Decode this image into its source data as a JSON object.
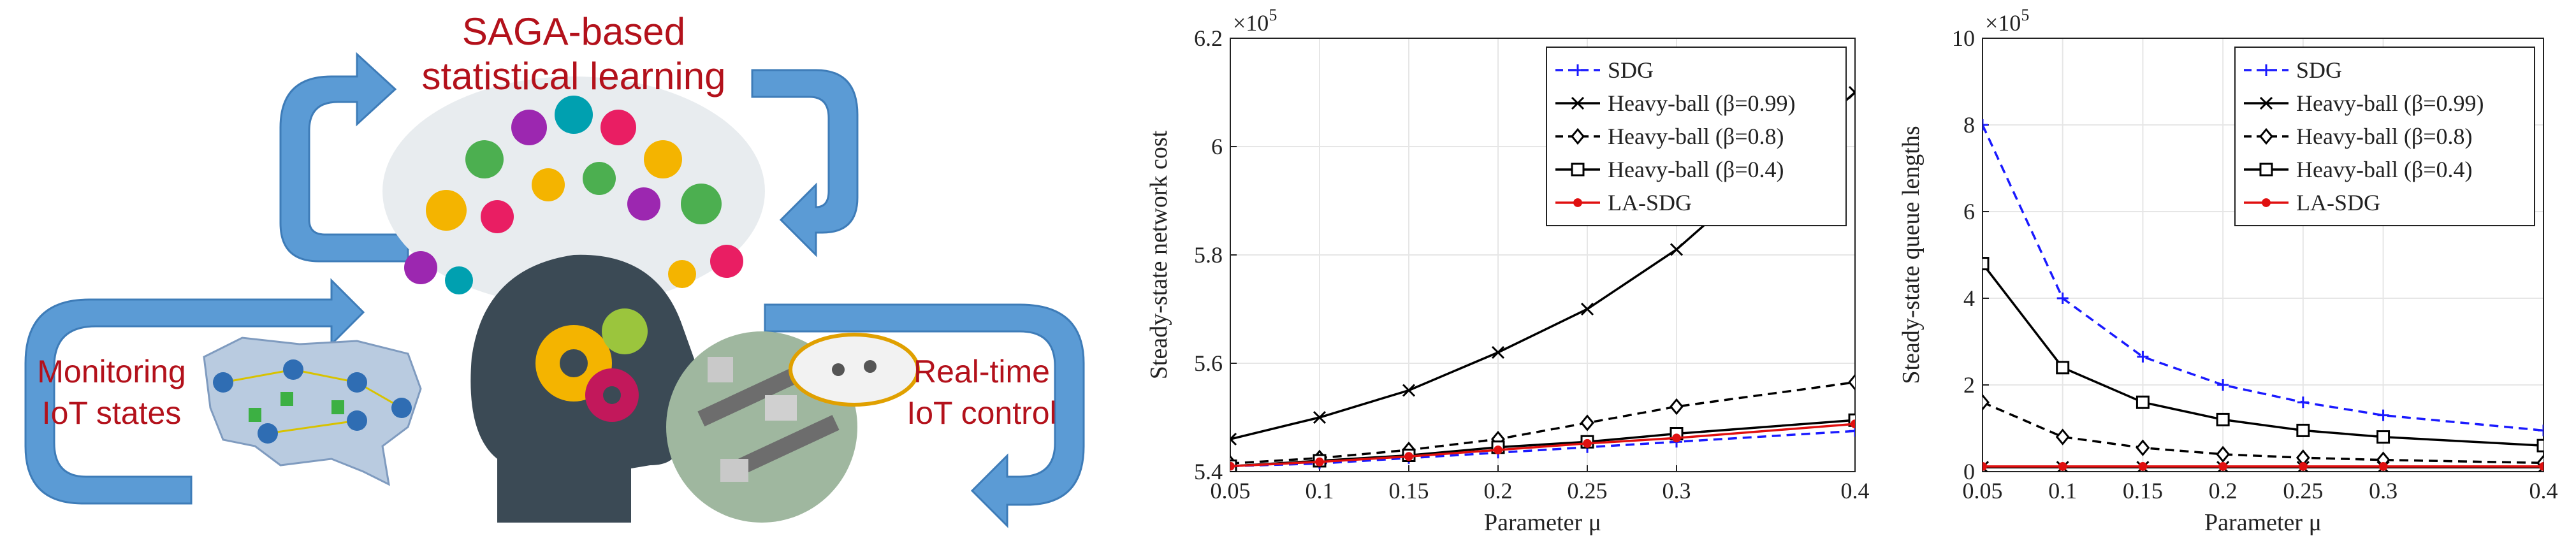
{
  "diagram": {
    "title_line1": "SAGA-based",
    "title_line2": "statistical learning",
    "left_line1": "Monitoring",
    "left_line2": "IoT states",
    "right_line1": "Real-time",
    "right_line2": "IoT control",
    "text_color": "#b3111b",
    "arrow_color": "#5b9bd5"
  },
  "chart_data": [
    {
      "type": "line",
      "title": "",
      "xlabel": "Parameter μ",
      "ylabel": "Steady-state network cost",
      "scale_label": "×10",
      "scale_exp": "5",
      "x": [
        0.05,
        0.1,
        0.15,
        0.2,
        0.25,
        0.3,
        0.4
      ],
      "xlim": [
        0.05,
        0.4
      ],
      "ylim": [
        5.4,
        6.2
      ],
      "xticks": [
        "0.05",
        "0.1",
        "0.15",
        "0.2",
        "0.25",
        "0.3",
        "0.4"
      ],
      "yticks": [
        "5.4",
        "5.6",
        "5.8",
        "6",
        "6.2"
      ],
      "ytick_values": [
        5.4,
        5.6,
        5.8,
        6.0,
        6.2
      ],
      "grid": true,
      "legend_position": "top-right",
      "series": [
        {
          "name": "SDG",
          "color": "#1a1aff",
          "dash": "dashed",
          "marker": "plus",
          "values": [
            5.41,
            5.415,
            5.425,
            5.435,
            5.445,
            5.455,
            5.475
          ]
        },
        {
          "name": "Heavy-ball (β=0.99)",
          "color": "#000000",
          "dash": "solid",
          "marker": "x",
          "values": [
            5.46,
            5.5,
            5.55,
            5.62,
            5.7,
            5.81,
            6.1
          ]
        },
        {
          "name": "Heavy-ball (β=0.8)",
          "color": "#000000",
          "dash": "dashed",
          "marker": "diamond",
          "values": [
            5.415,
            5.425,
            5.44,
            5.46,
            5.49,
            5.52,
            5.565
          ]
        },
        {
          "name": "Heavy-ball (β=0.4)",
          "color": "#000000",
          "dash": "solid",
          "marker": "square",
          "values": [
            5.41,
            5.42,
            5.43,
            5.445,
            5.455,
            5.47,
            5.495
          ]
        },
        {
          "name": "LA-SDG",
          "color": "#e01010",
          "dash": "solid",
          "marker": "dot",
          "values": [
            5.41,
            5.418,
            5.428,
            5.44,
            5.452,
            5.462,
            5.488
          ]
        }
      ]
    },
    {
      "type": "line",
      "title": "",
      "xlabel": "Parameter μ",
      "ylabel": "Steady-state queue lengths",
      "scale_label": "×10",
      "scale_exp": "5",
      "x": [
        0.05,
        0.1,
        0.15,
        0.2,
        0.25,
        0.3,
        0.4
      ],
      "xlim": [
        0.05,
        0.4
      ],
      "ylim": [
        0,
        10
      ],
      "xticks": [
        "0.05",
        "0.1",
        "0.15",
        "0.2",
        "0.25",
        "0.3",
        "0.4"
      ],
      "yticks": [
        "0",
        "2",
        "4",
        "6",
        "8",
        "10"
      ],
      "ytick_values": [
        0,
        2,
        4,
        6,
        8,
        10
      ],
      "grid": true,
      "legend_position": "top-right",
      "series": [
        {
          "name": "SDG",
          "color": "#1a1aff",
          "dash": "dashed",
          "marker": "plus",
          "values": [
            8.0,
            4.0,
            2.65,
            2.0,
            1.6,
            1.3,
            0.95
          ]
        },
        {
          "name": "Heavy-ball (β=0.99)",
          "color": "#000000",
          "dash": "solid",
          "marker": "x",
          "values": [
            0.1,
            0.1,
            0.1,
            0.1,
            0.1,
            0.1,
            0.1
          ]
        },
        {
          "name": "Heavy-ball (β=0.8)",
          "color": "#000000",
          "dash": "dashed",
          "marker": "diamond",
          "values": [
            1.6,
            0.8,
            0.55,
            0.4,
            0.32,
            0.27,
            0.2
          ]
        },
        {
          "name": "Heavy-ball (β=0.4)",
          "color": "#000000",
          "dash": "solid",
          "marker": "square",
          "values": [
            4.8,
            2.4,
            1.6,
            1.2,
            0.95,
            0.8,
            0.6
          ]
        },
        {
          "name": "LA-SDG",
          "color": "#e01010",
          "dash": "solid",
          "marker": "dot",
          "values": [
            0.12,
            0.12,
            0.12,
            0.12,
            0.12,
            0.12,
            0.12
          ]
        }
      ]
    }
  ]
}
